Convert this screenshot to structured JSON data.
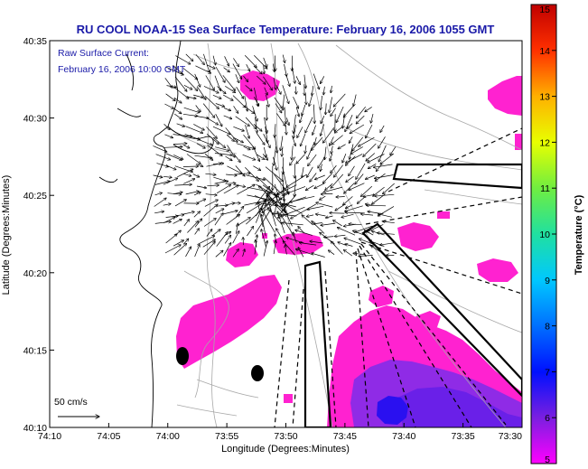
{
  "title": "RU COOL  NOAA-15  Sea Surface Temperature:  February 16, 2006 1055 GMT",
  "annotation": {
    "line1": "Raw Surface Current:",
    "line2": "February 16, 2006 10:00 GMT"
  },
  "scale_label": "50 cm/s",
  "colorbar": {
    "label": "Temperature (°C)",
    "min": 5,
    "max": 15,
    "ticks": [
      "5",
      "6",
      "7",
      "8",
      "9",
      "10",
      "11",
      "12",
      "13",
      "14",
      "15"
    ]
  },
  "chart_data": {
    "type": "heatmap",
    "xlabel": "Longitude (Degrees:Minutes)",
    "ylabel": "Latitude (Degrees:Minutes)",
    "xticks": [
      "74:10",
      "74:05",
      "74:00",
      "73:55",
      "73:50",
      "73:45",
      "73:40",
      "73:35",
      "73:30"
    ],
    "yticks": [
      "40:35",
      "40:30",
      "40:25",
      "40:20",
      "40:15",
      "40:10"
    ],
    "xlim_deg": [
      -74.1667,
      -73.5
    ],
    "ylim_deg": [
      40.1667,
      40.5833
    ],
    "grid": false,
    "sst_range_c": [
      5,
      15
    ]
  },
  "colors": {
    "magenta": "#ff22d0",
    "purple": "#8f2be6",
    "blue": "#2a10f0",
    "title": "#1a1aa8"
  }
}
